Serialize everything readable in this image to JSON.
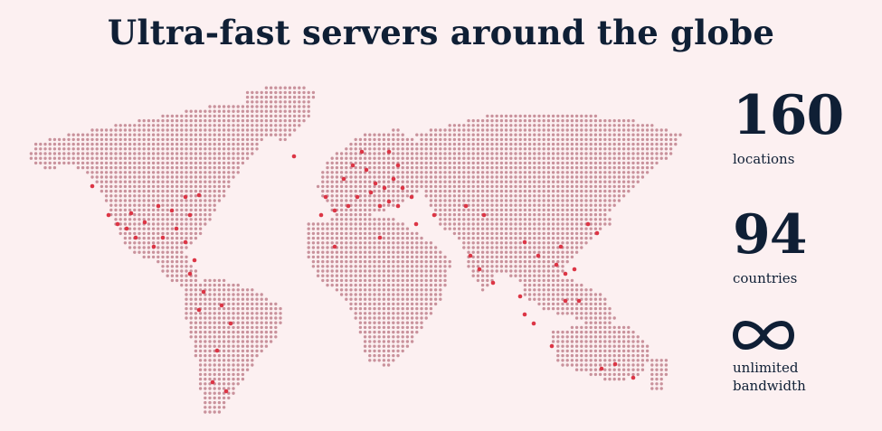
{
  "title": "Ultra-fast servers around the globe",
  "stats": {
    "locations": {
      "value": "160",
      "label": "locations"
    },
    "countries": {
      "value": "94",
      "label": "countries"
    },
    "bandwidth": {
      "icon": "infinity-icon",
      "label_line1": "unlimited",
      "label_line2": "bandwidth"
    }
  },
  "colors": {
    "background": "#fcf0f1",
    "dot": "#c9929c",
    "server_dot": "#dc3545",
    "text": "#0f1f35"
  }
}
